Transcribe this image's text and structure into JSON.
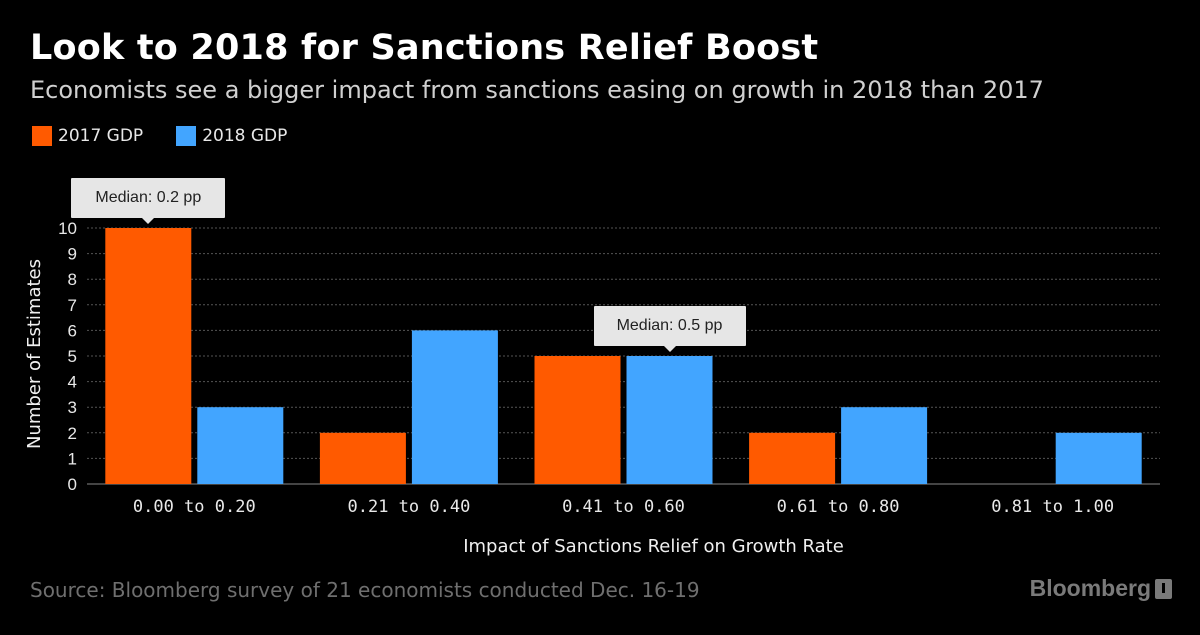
{
  "colors": {
    "background": "#000000",
    "series_2017": "#ff5a00",
    "series_2018": "#42a5ff",
    "grid": "#555555",
    "callout_bg": "#e6e6e6"
  },
  "chart_data": {
    "type": "bar",
    "title": "Look to 2018 for Sanctions Relief Boost",
    "subtitle": "Economists see a bigger impact from sanctions easing on growth in 2018 than 2017",
    "categories": [
      "0.00 to 0.20",
      "0.21 to 0.40",
      "0.41 to 0.60",
      "0.61 to 0.80",
      "0.81 to 1.00"
    ],
    "series": [
      {
        "name": "2017 GDP",
        "values": [
          10,
          2,
          5,
          2,
          0
        ]
      },
      {
        "name": "2018 GDP",
        "values": [
          3,
          6,
          5,
          3,
          2
        ]
      }
    ],
    "xlabel": "Impact of Sanctions Relief on Growth Rate",
    "ylabel": "Number of Estimates",
    "ylim": [
      0,
      10
    ],
    "yticks": [
      0,
      1,
      2,
      3,
      4,
      5,
      6,
      7,
      8,
      9,
      10
    ],
    "grid": true,
    "legend_position": "top-left",
    "annotations": [
      {
        "text": "Median: 0.2 pp",
        "series": "2017 GDP",
        "category": "0.00 to 0.20"
      },
      {
        "text": "Median: 0.5 pp",
        "series": "2018 GDP",
        "category": "0.41 to 0.60"
      }
    ]
  },
  "footer": {
    "source": "Source: Bloomberg survey of 21 economists conducted Dec. 16-19",
    "brand": "Bloomberg"
  }
}
